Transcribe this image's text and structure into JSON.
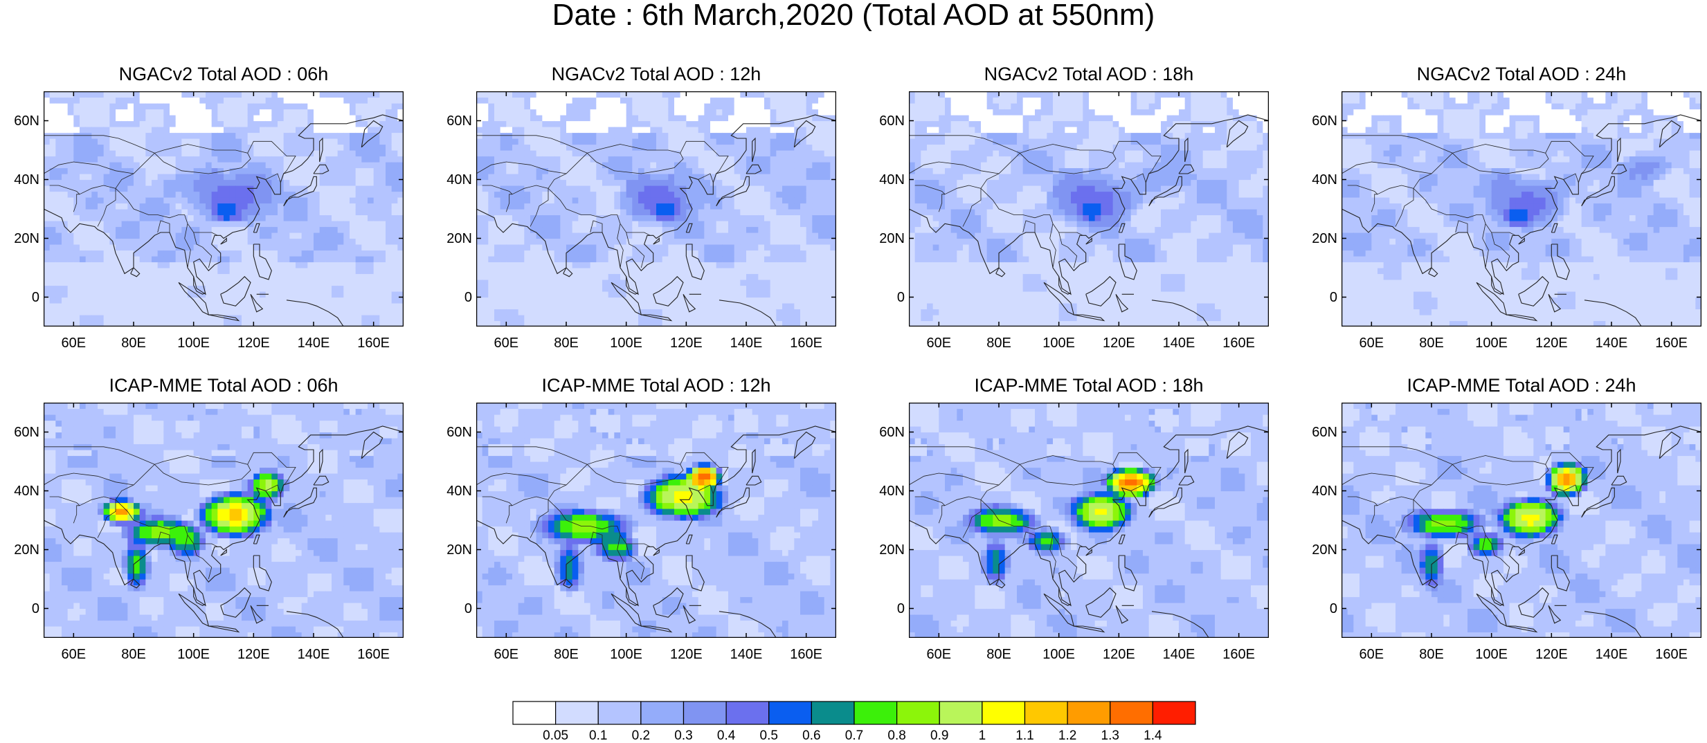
{
  "figure": {
    "title": "Date : 6th March,2020 (Total AOD at 550nm)"
  },
  "panels": [
    {
      "title": "NGACv2 Total AOD : 06h",
      "model": "NGACv2",
      "lead": "06h"
    },
    {
      "title": "NGACv2 Total AOD : 12h",
      "model": "NGACv2",
      "lead": "12h"
    },
    {
      "title": "NGACv2 Total AOD : 18h",
      "model": "NGACv2",
      "lead": "18h"
    },
    {
      "title": "NGACv2 Total AOD : 24h",
      "model": "NGACv2",
      "lead": "24h"
    },
    {
      "title": "ICAP-MME Total AOD : 06h",
      "model": "ICAP-MME",
      "lead": "06h"
    },
    {
      "title": "ICAP-MME Total AOD : 12h",
      "model": "ICAP-MME",
      "lead": "12h"
    },
    {
      "title": "ICAP-MME Total AOD : 18h",
      "model": "ICAP-MME",
      "lead": "18h"
    },
    {
      "title": "ICAP-MME Total AOD : 24h",
      "model": "ICAP-MME",
      "lead": "24h"
    }
  ],
  "axes": {
    "lon_range": [
      50,
      170
    ],
    "lat_range": [
      -10,
      70
    ],
    "x_tick_values": [
      60,
      80,
      100,
      120,
      140,
      160
    ],
    "x_ticks": [
      "60E",
      "80E",
      "100E",
      "120E",
      "140E",
      "160E"
    ],
    "y_tick_values": [
      60,
      40,
      20,
      0
    ],
    "y_ticks": [
      "60N",
      "40N",
      "20N",
      "0"
    ]
  },
  "colorbar": {
    "levels": [
      "0.05",
      "0.1",
      "0.2",
      "0.3",
      "0.4",
      "0.5",
      "0.6",
      "0.7",
      "0.8",
      "0.9",
      "1",
      "1.1",
      "1.2",
      "1.3",
      "1.4"
    ],
    "colors": [
      "#ffffff",
      "#d2dcff",
      "#b4c4ff",
      "#94acfa",
      "#8094f2",
      "#6b70ee",
      "#0a5ef0",
      "#0a8c8c",
      "#3cf00a",
      "#8cf50a",
      "#b9f55a",
      "#ffff00",
      "#ffc800",
      "#ff9c00",
      "#ff6e00",
      "#ff1e00"
    ]
  }
}
